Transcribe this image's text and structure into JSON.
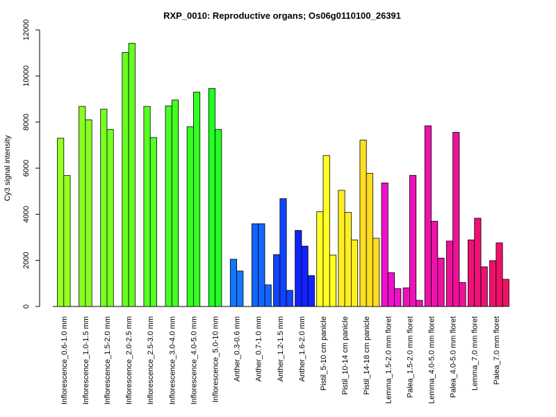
{
  "chart_data": {
    "type": "bar",
    "title": "RXP_0010: Reproductive organs; Os06g0110100_26391",
    "xlabel": "",
    "ylabel": "Cy3 signal intensity",
    "ylim": [
      0,
      12000
    ],
    "yticks": [
      0,
      2000,
      4000,
      6000,
      8000,
      10000,
      12000
    ],
    "grid": false,
    "groups": [
      {
        "label": "Inflorescence_0.6-1.0 mm",
        "color": "#99ff22",
        "values": [
          7300,
          5680
        ]
      },
      {
        "label": "Inflorescence_1.0-1.5 mm",
        "color": "#88ff22",
        "values": [
          8680,
          8100
        ]
      },
      {
        "label": "Inflorescence_1.5-2.0 mm",
        "color": "#77ff22",
        "values": [
          8560,
          7680
        ]
      },
      {
        "label": "Inflorescence_2.0-2.5 mm",
        "color": "#66ff22",
        "values": [
          11020,
          11420
        ]
      },
      {
        "label": "Inflorescence_2.5-3.0 mm",
        "color": "#55ff22",
        "values": [
          8680,
          7330
        ]
      },
      {
        "label": "Inflorescence_3.0-4.0 mm",
        "color": "#44ff22",
        "values": [
          8700,
          8960
        ]
      },
      {
        "label": "Inflorescence_4.0-5.0 mm",
        "color": "#33ff22",
        "values": [
          7800,
          9300
        ]
      },
      {
        "label": "Inflorescence_5.0-10 mm",
        "color": "#22ff22",
        "values": [
          9460,
          7680
        ]
      },
      {
        "label": "Anther_0.3-0.6 mm",
        "color": "#1177ff",
        "values": [
          2050,
          1540
        ]
      },
      {
        "label": "Anther_0.7-1.0 mm",
        "color": "#1166ff",
        "values": [
          3590,
          3590,
          940
        ]
      },
      {
        "label": "Anther_1.2-1.5 mm",
        "color": "#1144ff",
        "values": [
          2250,
          4680,
          700
        ]
      },
      {
        "label": "Anther_1.6-2.0 mm",
        "color": "#1122ff",
        "values": [
          3300,
          2620,
          1340
        ]
      },
      {
        "label": "Pistil_5-10 cm panicle",
        "color": "#ffff22",
        "values": [
          4110,
          6550,
          2230
        ]
      },
      {
        "label": "Pistil_10-14 cm panicle",
        "color": "#ffee22",
        "values": [
          5040,
          4080,
          2890
        ]
      },
      {
        "label": "Pistil_14-18 cm panicle",
        "color": "#ffdd22",
        "values": [
          7220,
          5780,
          2960
        ]
      },
      {
        "label": "Lemma_1.5-2.0 mm floret",
        "color": "#ee11cc",
        "values": [
          5360,
          1470,
          780
        ]
      },
      {
        "label": "Palea_1.5-2.0 mm floret",
        "color": "#ee11bb",
        "values": [
          810,
          5690,
          270
        ]
      },
      {
        "label": "Lemma_4.0-5.0 mm floret",
        "color": "#ee11aa",
        "values": [
          7840,
          3700,
          2100
        ]
      },
      {
        "label": "Palea_4.0-5.0 mm floret",
        "color": "#ee1199",
        "values": [
          2840,
          7560,
          1040
        ]
      },
      {
        "label": "Lemma_7.0 mm floret",
        "color": "#ee1177",
        "values": [
          2890,
          3830,
          1720
        ]
      },
      {
        "label": "Palea_7.0 mm floret",
        "color": "#ee1166",
        "values": [
          1990,
          2760,
          1180
        ]
      }
    ]
  }
}
